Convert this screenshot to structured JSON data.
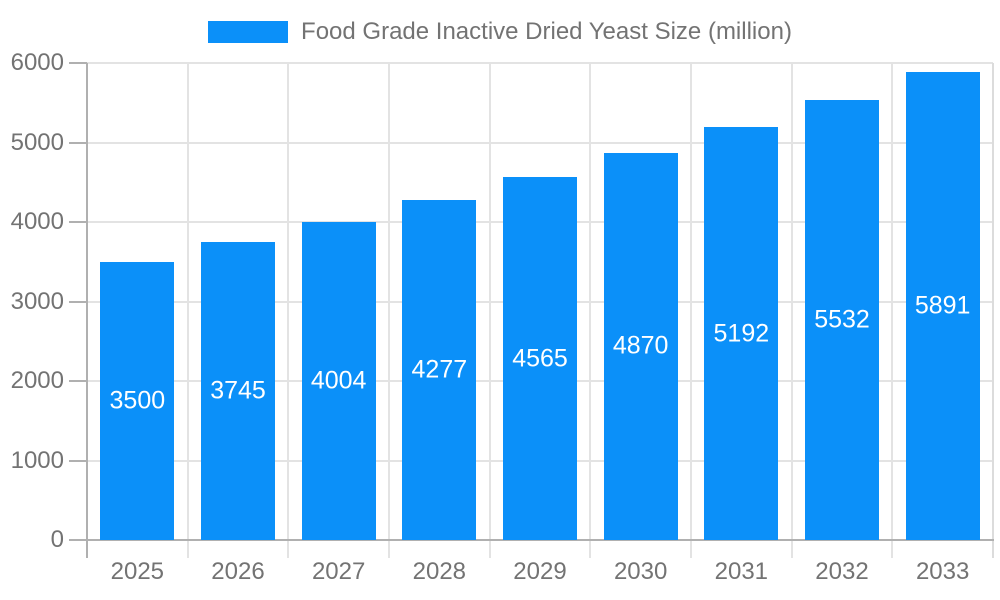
{
  "chart_data": {
    "type": "bar",
    "title": "",
    "legend": {
      "label": "Food Grade Inactive Dried Yeast Size (million)",
      "position": "top"
    },
    "categories": [
      "2025",
      "2026",
      "2027",
      "2028",
      "2029",
      "2030",
      "2031",
      "2032",
      "2033"
    ],
    "series": [
      {
        "name": "Food Grade Inactive Dried Yeast Size (million)",
        "values": [
          3500,
          3745,
          4004,
          4277,
          4565,
          4870,
          5192,
          5532,
          5891
        ]
      }
    ],
    "value_labels": {
      "visible": true,
      "placement": "inside-center",
      "values": [
        "3500",
        "3745",
        "4004",
        "4277",
        "4565",
        "4870",
        "5192",
        "5532",
        "5891"
      ]
    },
    "xlabel": "",
    "ylabel": "",
    "ylim": [
      0,
      6000
    ],
    "y_ticks": [
      0,
      1000,
      2000,
      3000,
      4000,
      5000,
      6000
    ],
    "y_tick_labels": [
      "0",
      "1000",
      "2000",
      "3000",
      "4000",
      "5000",
      "6000"
    ],
    "grid": true,
    "legend_position": "top-center",
    "colors": {
      "bar": "#0b90f9",
      "grid": "#e3e3e3",
      "axis": "#b0b0b0",
      "right_border": "#dcdcdc",
      "tick_text": "#737373",
      "legend_text": "#737373",
      "value_text": "#ffffff",
      "background": "#ffffff"
    }
  }
}
